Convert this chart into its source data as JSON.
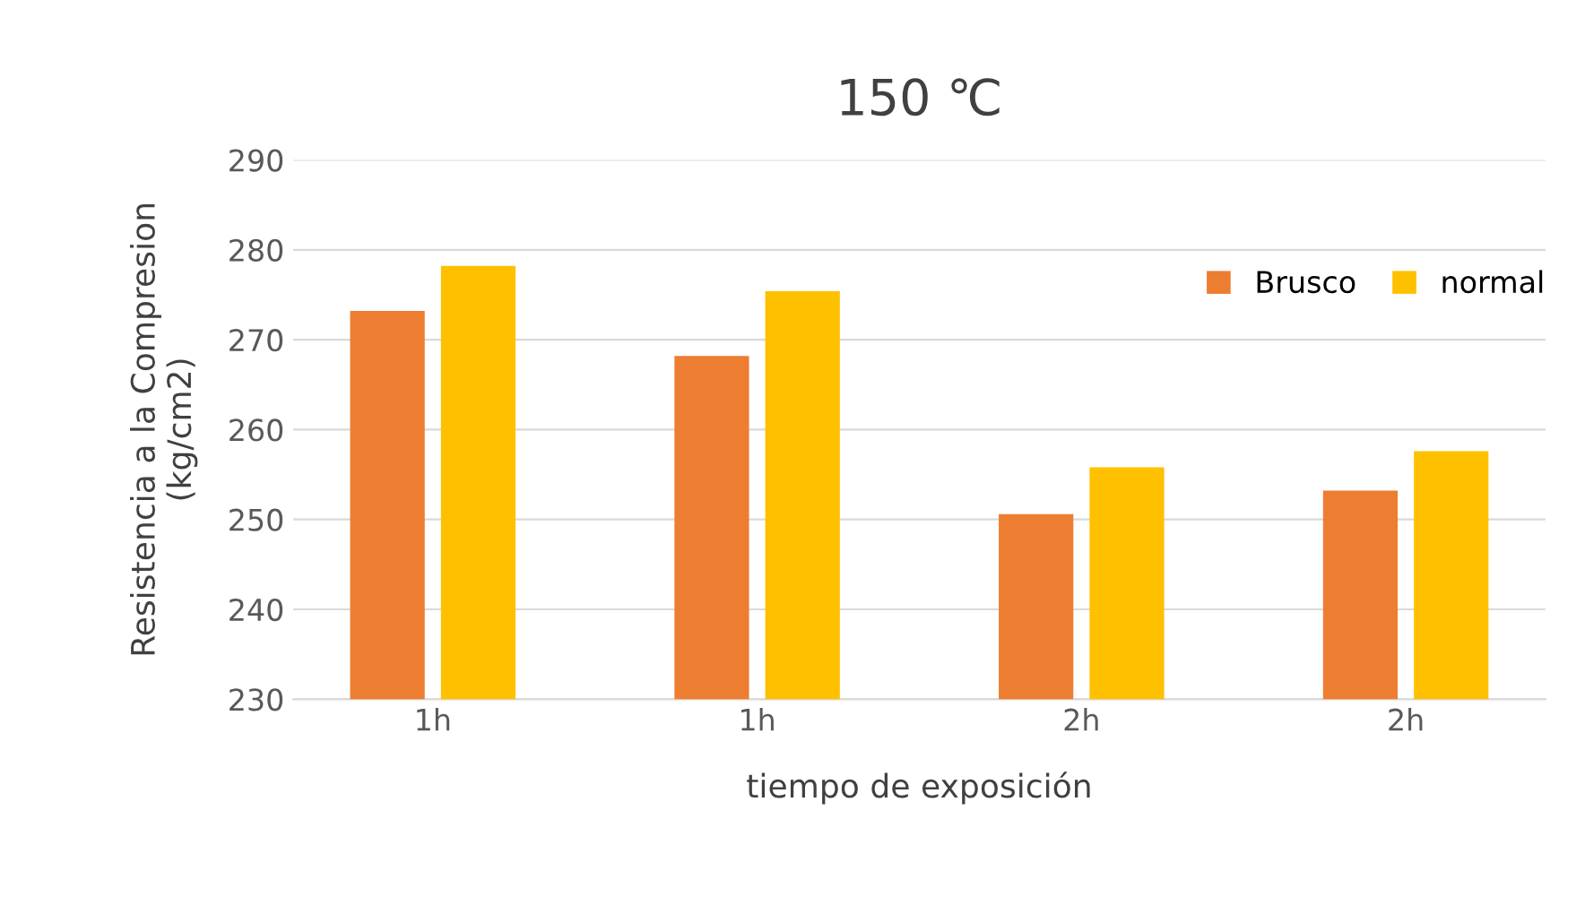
{
  "chart_data": {
    "type": "bar",
    "title": "150 ℃",
    "xlabel": "tiempo de exposición",
    "ylabel": "Resistencia a la Compresion\n(kg/cm2)",
    "categories": [
      "1h",
      "1h",
      "2h",
      "2h"
    ],
    "series": [
      {
        "name": "Brusco",
        "color": "#ed7d31",
        "values": [
          273.2,
          268.2,
          250.6,
          253.2
        ]
      },
      {
        "name": "normal",
        "color": "#ffc000",
        "values": [
          278.2,
          275.4,
          255.8,
          257.6
        ]
      }
    ],
    "ylim": [
      230,
      290
    ],
    "yticks": [
      230,
      240,
      250,
      260,
      270,
      280,
      290
    ],
    "grid": "y",
    "legend": "top right"
  }
}
